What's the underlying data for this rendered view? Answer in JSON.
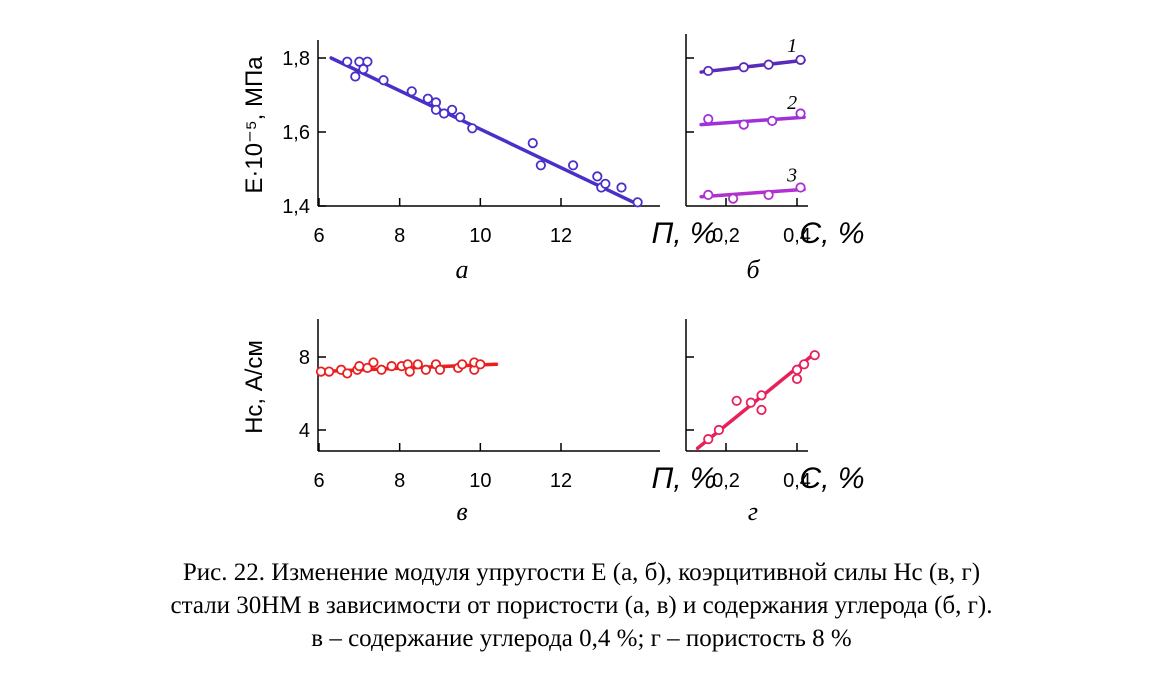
{
  "chart_data": [
    {
      "panel": "а",
      "type": "scatter",
      "xlabel": "П, %",
      "ylabel": "E·10⁻⁵, МПа",
      "xlim": [
        6,
        14
      ],
      "ylim": [
        1.4,
        1.84
      ],
      "xticks": [
        "6",
        "8",
        "10",
        "12"
      ],
      "yticks": [
        "1,4",
        "1,6",
        "1,8"
      ],
      "color": "#4a2fc8",
      "series": [
        {
          "points": [
            [
              6.7,
              1.79
            ],
            [
              6.9,
              1.75
            ],
            [
              7.0,
              1.79
            ],
            [
              7.1,
              1.77
            ],
            [
              7.2,
              1.79
            ],
            [
              7.6,
              1.74
            ],
            [
              8.3,
              1.71
            ],
            [
              8.7,
              1.69
            ],
            [
              8.9,
              1.68
            ],
            [
              8.9,
              1.66
            ],
            [
              9.1,
              1.65
            ],
            [
              9.3,
              1.66
            ],
            [
              9.5,
              1.64
            ],
            [
              9.8,
              1.61
            ],
            [
              11.3,
              1.57
            ],
            [
              11.5,
              1.51
            ],
            [
              12.3,
              1.51
            ],
            [
              12.9,
              1.48
            ],
            [
              13.0,
              1.45
            ],
            [
              13.1,
              1.46
            ],
            [
              13.5,
              1.45
            ],
            [
              13.9,
              1.41
            ]
          ],
          "fit": [
            [
              6.3,
              1.8
            ],
            [
              13.8,
              1.41
            ]
          ]
        }
      ]
    },
    {
      "panel": "б",
      "type": "scatter",
      "xlabel": "C, %",
      "xlim": [
        0.1,
        0.45
      ],
      "ylim": [
        1.4,
        1.84
      ],
      "xticks": [
        "0,2",
        "0,4"
      ],
      "series": [
        {
          "name": "1",
          "color": "#5a2ab8",
          "points": [
            [
              0.15,
              1.765
            ],
            [
              0.25,
              1.775
            ],
            [
              0.32,
              1.782
            ],
            [
              0.41,
              1.795
            ]
          ],
          "fit": [
            [
              0.13,
              1.762
            ],
            [
              0.42,
              1.794
            ]
          ]
        },
        {
          "name": "2",
          "color": "#a030d8",
          "points": [
            [
              0.15,
              1.635
            ],
            [
              0.25,
              1.62
            ],
            [
              0.33,
              1.63
            ],
            [
              0.41,
              1.65
            ]
          ],
          "fit": [
            [
              0.13,
              1.62
            ],
            [
              0.42,
              1.64
            ]
          ]
        },
        {
          "name": "3",
          "color": "#b030d0",
          "points": [
            [
              0.15,
              1.43
            ],
            [
              0.22,
              1.42
            ],
            [
              0.32,
              1.43
            ],
            [
              0.41,
              1.45
            ]
          ],
          "fit": [
            [
              0.13,
              1.425
            ],
            [
              0.42,
              1.445
            ]
          ]
        }
      ]
    },
    {
      "panel": "в",
      "type": "scatter",
      "xlabel": "П, %",
      "ylabel": "Hc, А/см",
      "xlim": [
        6,
        14
      ],
      "ylim": [
        3,
        10
      ],
      "xticks": [
        "6",
        "8",
        "10",
        "12"
      ],
      "yticks": [
        "4",
        "8"
      ],
      "color": "#e82020",
      "series": [
        {
          "points": [
            [
              6.05,
              7.2
            ],
            [
              6.25,
              7.2
            ],
            [
              6.55,
              7.3
            ],
            [
              6.7,
              7.1
            ],
            [
              6.95,
              7.3
            ],
            [
              7.0,
              7.5
            ],
            [
              7.2,
              7.4
            ],
            [
              7.35,
              7.7
            ],
            [
              7.55,
              7.3
            ],
            [
              7.8,
              7.5
            ],
            [
              8.05,
              7.5
            ],
            [
              8.2,
              7.6
            ],
            [
              8.25,
              7.2
            ],
            [
              8.45,
              7.6
            ],
            [
              8.65,
              7.3
            ],
            [
              8.9,
              7.6
            ],
            [
              9.0,
              7.3
            ],
            [
              9.45,
              7.4
            ],
            [
              9.55,
              7.6
            ],
            [
              9.85,
              7.3
            ],
            [
              9.85,
              7.7
            ],
            [
              10.0,
              7.6
            ]
          ],
          "fit": [
            [
              6.0,
              7.2
            ],
            [
              10.4,
              7.6
            ]
          ]
        }
      ]
    },
    {
      "panel": "г",
      "type": "scatter",
      "xlabel": "C, %",
      "xlim": [
        0.1,
        0.45
      ],
      "ylim": [
        3,
        10
      ],
      "xticks": [
        "0,2",
        "0,4"
      ],
      "color": "#e8205a",
      "series": [
        {
          "points": [
            [
              0.15,
              3.5
            ],
            [
              0.18,
              4.0
            ],
            [
              0.23,
              5.6
            ],
            [
              0.27,
              5.5
            ],
            [
              0.3,
              5.1
            ],
            [
              0.3,
              5.9
            ],
            [
              0.4,
              6.8
            ],
            [
              0.4,
              7.3
            ],
            [
              0.42,
              7.6
            ],
            [
              0.45,
              8.1
            ]
          ],
          "fit": [
            [
              0.12,
              3.0
            ],
            [
              0.45,
              8.2
            ]
          ]
        }
      ]
    }
  ],
  "caption": {
    "line1": "Рис. 22. Изменение модуля упругости E (а, б), коэрцитивной силы Hс (в, г)",
    "line2": "стали 30НМ в зависимости от пористости (а, в) и содержания углерода (б, г).",
    "line3": "в – содержание углерода 0,4 %; г – пористость 8 %"
  }
}
